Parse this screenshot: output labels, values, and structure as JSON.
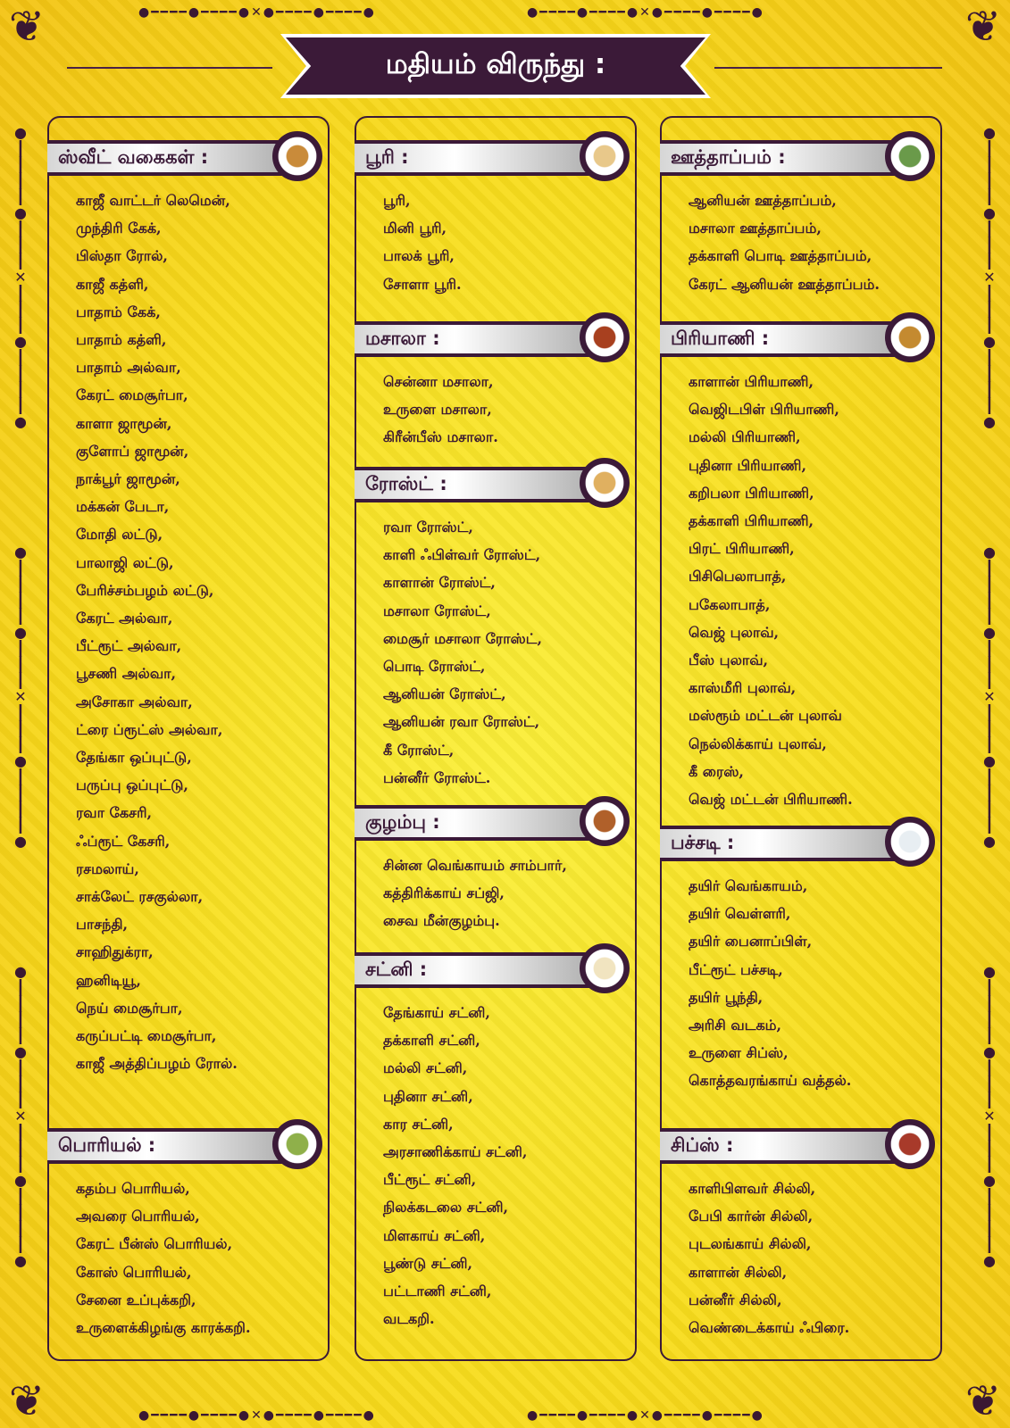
{
  "title": "மதியம் விருந்து :",
  "colors": {
    "accent": "#3b1a38",
    "background": "#f8dc1c"
  },
  "columns": [
    {
      "sections": [
        {
          "title": "ஸ்வீட் வகைகள் :",
          "icon": "sweets-plate-image",
          "items": [
            "காஜீ வாட்டர்  லெமென்,",
            "முந்திரி கேக்,",
            "பிஸ்தா  ரோல்,",
            "காஜீ கத்ளி,",
            "பாதாம் கேக்,",
            "பாதாம் கத்ளி,",
            "பாதாம் அல்வா,",
            "கேரட் மைசூர்பா,",
            "காளா ஜாமூன்,",
            "குளோப் ஜாமூன்,",
            "நாக்பூர் ஜாமூன்,",
            "மக்கன் பேடா,",
            "மோதி லட்டு,",
            "பாலாஜி லட்டு,",
            "பேரிச்சம்பழம் லட்டு,",
            "கேரட் அல்வா,",
            "பீட்ரூட் அல்வா,",
            "பூசணி அல்வா,",
            "அசோகா அல்வா,",
            "ட்ரை ப்ரூட்ஸ் அல்வா,",
            "தேங்கா ஒப்புட்டு,",
            "பருப்பு ஒப்புட்டு,",
            "ரவா கேசரி,",
            "ஃப்ரூட் கேசரி,",
            "ரசமலாய்,",
            "சாக்லேட் ரசகுல்லா,",
            "பாசந்தி,",
            "சாஹிதுக்ரா,",
            "ஹனிடியூ,",
            "நெய் மைசூர்பா,",
            "கருப்பட்டி மைசூர்பா,",
            "காஜீ அத்திப்பழம் ரோல்."
          ]
        },
        {
          "title": "பொரியல் :",
          "icon": "poriyal-plate-image",
          "items": [
            "கதம்ப பொரியல்,",
            "அவரை பொரியல்,",
            "கேரட் பீன்ஸ் பொரியல்,",
            "கோஸ் பொரியல்,",
            "சேனை உப்புக்கறி,",
            "உருளைக்கிழங்கு  காரக்கறி."
          ]
        }
      ]
    },
    {
      "sections": [
        {
          "title": "பூரி :",
          "icon": "poori-plate-image",
          "items": [
            "பூரி,",
            "மினி பூரி,",
            "பாலக் பூரி,",
            "சோளா பூரி."
          ]
        },
        {
          "title": "மசாலா :",
          "icon": "masala-plate-image",
          "items": [
            "சென்னா மசாலா,",
            "உருளை மசாலா,",
            "கிரீன்பீஸ் மசாலா."
          ]
        },
        {
          "title": "ரோஸ்ட் :",
          "icon": "dosa-plate-image",
          "items": [
            "ரவா ரோஸ்ட்,",
            "காளி ஃபிள்வர் ரோஸ்ட்,",
            "காளான் ரோஸ்ட்,",
            "மசாலா ரோஸ்ட்,",
            "மைசூர் மசாலா ரோஸ்ட்,",
            "பொடி ரோஸ்ட்,",
            "ஆனியன் ரோஸ்ட்,",
            "ஆனியன் ரவா ரோஸ்ட்,",
            "கீ ரோஸ்ட்,",
            "பன்னீர் ரோஸ்ட்."
          ]
        },
        {
          "title": "குழம்பு :",
          "icon": "kuzhambu-plate-image",
          "items": [
            "சின்ன வெங்காயம் சாம்பார்,",
            "கத்திரிக்காய் சப்ஜி,",
            "சைவ மீன்குழம்பு."
          ]
        },
        {
          "title": "சட்னி :",
          "icon": "chutney-plate-image",
          "items": [
            "தேங்காய் சட்னி,",
            "தக்காளி சட்னி,",
            "மல்லி சட்னி,",
            "புதினா சட்னி,",
            "கார சட்னி,",
            "அரசாணிக்காய் சட்னி,",
            "பீட்ரூட் சட்னி,",
            "நிலக்கடலை சட்னி,",
            "மிளகாய் சட்னி,",
            "பூண்டு சட்னி,",
            "பட்டாணி சட்னி,",
            "வடகறி."
          ]
        }
      ]
    },
    {
      "sections": [
        {
          "title": "ஊத்தாப்பம் :",
          "icon": "uthappam-plate-image",
          "items": [
            "ஆனியன் ஊத்தாப்பம்,",
            "மசாலா ஊத்தாப்பம்,",
            "தக்காளி பொடி ஊத்தாப்பம்,",
            "கேரட் ஆனியன் ஊத்தாப்பம்."
          ]
        },
        {
          "title": "பிரியாணி :",
          "icon": "biryani-plate-image",
          "items": [
            "காளான் பிரியாணி,",
            "வெஜிடபிள் பிரியாணி,",
            "மல்லி பிரியாணி,",
            "புதினா பிரியாணி,",
            "கறிபலா பிரியாணி,",
            "தக்காளி பிரியாணி,",
            "பிரட் பிரியாணி,",
            "பிசிபெலாபாத்,",
            "பகேலாபாத்,",
            "வெஜ் புலாவ்,",
            "பீஸ் புலாவ்,",
            "காஸ்மீரி புலாவ்,",
            "மஸ்ரூம் மட்டன் புலாவ்",
            "நெல்லிக்காய் புலாவ்,",
            "கீ ரைஸ்,",
            "வெஜ் மட்டன் பிரியாணி."
          ]
        },
        {
          "title": "பச்சடி :",
          "icon": "pachadi-bowl-image",
          "items": [
            "தயிர் வெங்காயம்,",
            "தயிர் வெள்ளரி,",
            "தயிர் பைனாப்பிள்,",
            "பீட்ரூட் பச்சடி,",
            "தயிர் பூந்தி,",
            "அரிசி வடகம்,",
            "உருளை சிப்ஸ்,",
            "கொத்தவரங்காய் வத்தல்."
          ]
        },
        {
          "title": "சிப்ஸ் :",
          "icon": "chilli-plate-image",
          "items": [
            "காளிபிளவர் சில்லி,",
            "பேபி கார்ன் சில்லி,",
            "புடலங்காய் சில்லி,",
            "காளான் சில்லி,",
            "பன்னீர் சில்லி,",
            "வெண்டைக்காய் ஃபிரை."
          ]
        }
      ]
    }
  ]
}
